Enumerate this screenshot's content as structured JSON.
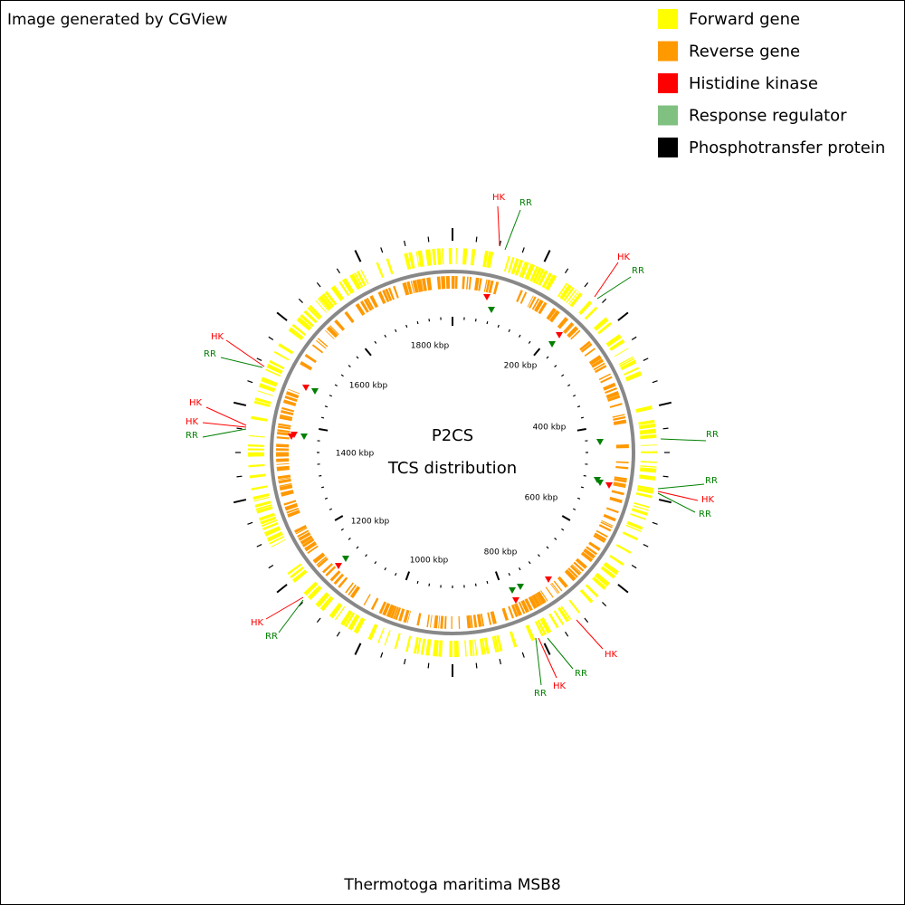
{
  "header": "Image generated by CGView",
  "legend": [
    {
      "name": "Forward gene",
      "color": "#ffff00"
    },
    {
      "name": "Reverse gene",
      "color": "#ff9900"
    },
    {
      "name": "Histidine kinase",
      "color": "#ff0000"
    },
    {
      "name": "Response regulator",
      "color": "#80c080"
    },
    {
      "name": "Phosphotransfer protein",
      "color": "#000000"
    }
  ],
  "center_title": "P2CS",
  "center_subtitle": "TCS distribution",
  "scale_labels": [
    "200 kbp",
    "400 kbp",
    "600 kbp",
    "800 kbp",
    "1000 kbp",
    "1200 kbp",
    "1400 kbp",
    "1600 kbp",
    "1800 kbp"
  ],
  "feature_labels": [
    "HK",
    "RR",
    "HK",
    "RR",
    "HK",
    "RR",
    "HK",
    "HK",
    "RR",
    "RR",
    "RR",
    "HK",
    "RR",
    "HK",
    "RR",
    "HK",
    "RR",
    "HK",
    "RR"
  ],
  "footer": "Thermotoga maritima MSB8"
}
